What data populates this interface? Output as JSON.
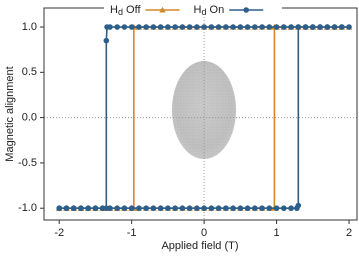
{
  "chart_data": {
    "type": "line",
    "xlabel": "Applied field (T)",
    "ylabel": "Magnetic alignment",
    "xlim": [
      -2.21,
      2.11
    ],
    "ylim": [
      -1.13,
      1.21
    ],
    "xticks": [
      -2,
      -1,
      0,
      1,
      2
    ],
    "yticks": [
      {
        "value": -1,
        "label": "-1.0"
      },
      {
        "value": -0.5,
        "label": "-0.5"
      },
      {
        "value": 0,
        "label": "0.0"
      },
      {
        "value": 0.5,
        "label": "0.5"
      },
      {
        "value": 1,
        "label": "1.0"
      }
    ],
    "zero_lines": true,
    "legend": "top",
    "series": [
      {
        "name": "Hd Off",
        "color": "#d4872b",
        "marker": "triangle",
        "x": [
          -2.0,
          -1.9,
          -1.8,
          -1.7,
          -1.6,
          -1.5,
          -1.4,
          -1.3,
          -1.2,
          -1.1,
          -1.0,
          -0.9,
          -0.8,
          -0.7,
          -0.6,
          -0.5,
          -0.4,
          -0.3,
          -0.2,
          -0.1,
          0.0,
          0.1,
          0.2,
          0.3,
          0.4,
          0.5,
          0.6,
          0.7,
          0.8,
          0.9,
          0.97,
          0.97,
          1.0,
          1.1,
          1.2,
          1.3,
          1.4,
          1.5,
          1.6,
          1.7,
          1.8,
          1.9,
          2.0,
          1.9,
          1.8,
          1.7,
          1.6,
          1.5,
          1.4,
          1.3,
          1.2,
          1.1,
          1.0,
          0.9,
          0.8,
          0.7,
          0.6,
          0.5,
          0.4,
          0.3,
          0.2,
          0.1,
          0.0,
          -0.1,
          -0.2,
          -0.3,
          -0.4,
          -0.5,
          -0.6,
          -0.7,
          -0.8,
          -0.9,
          -0.97,
          -0.97,
          -1.0,
          -1.1,
          -1.2,
          -1.3,
          -1.4,
          -1.5,
          -1.6,
          -1.7,
          -1.8,
          -1.9,
          -2.0
        ],
        "values": [
          -1,
          -1,
          -1,
          -1,
          -1,
          -1,
          -1,
          -1,
          -1,
          -1,
          -1,
          -1,
          -1,
          -1,
          -1,
          -1,
          -1,
          -1,
          -1,
          -1,
          -1,
          -1,
          -1,
          -1,
          -1,
          -1,
          -1,
          -1,
          -1,
          -1,
          -1,
          1,
          1,
          1,
          1,
          1,
          1,
          1,
          1,
          1,
          1,
          1,
          1,
          1,
          1,
          1,
          1,
          1,
          1,
          1,
          1,
          1,
          1,
          1,
          1,
          1,
          1,
          1,
          1,
          1,
          1,
          1,
          1,
          1,
          1,
          1,
          1,
          1,
          1,
          1,
          1,
          1,
          1,
          -1,
          -1,
          -1,
          -1,
          -1,
          -1,
          -1,
          -1,
          -1,
          -1,
          -1,
          -1
        ]
      },
      {
        "name": "Hd On",
        "color": "#2e5f8a",
        "marker": "circle",
        "x": [
          -2.0,
          -1.9,
          -1.8,
          -1.7,
          -1.6,
          -1.5,
          -1.4,
          -1.3,
          -1.2,
          -1.1,
          -1.0,
          -0.9,
          -0.8,
          -0.7,
          -0.6,
          -0.5,
          -0.4,
          -0.3,
          -0.2,
          -0.1,
          0.0,
          0.1,
          0.2,
          0.3,
          0.4,
          0.5,
          0.6,
          0.7,
          0.8,
          0.9,
          1.0,
          1.1,
          1.2,
          1.28,
          1.3,
          1.3,
          1.4,
          1.5,
          1.6,
          1.7,
          1.8,
          1.9,
          2.0,
          1.9,
          1.8,
          1.7,
          1.6,
          1.5,
          1.4,
          1.3,
          1.2,
          1.1,
          1.0,
          0.9,
          0.8,
          0.7,
          0.6,
          0.5,
          0.4,
          0.3,
          0.2,
          0.1,
          0.0,
          -0.1,
          -0.2,
          -0.3,
          -0.4,
          -0.5,
          -0.6,
          -0.7,
          -0.8,
          -0.9,
          -1.0,
          -1.1,
          -1.2,
          -1.3,
          -1.34,
          -1.35,
          -1.35,
          -1.4,
          -1.5,
          -1.6,
          -1.7,
          -1.8,
          -1.9,
          -2.0
        ],
        "values": [
          -1,
          -1,
          -1,
          -1,
          -1,
          -1,
          -1,
          -1,
          -1,
          -1,
          -1,
          -1,
          -1,
          -1,
          -1,
          -1,
          -1,
          -1,
          -1,
          -1,
          -1,
          -1,
          -1,
          -1,
          -1,
          -1,
          -1,
          -1,
          -1,
          -1,
          -1,
          -1,
          -1,
          -1,
          -0.97,
          1,
          1,
          1,
          1,
          1,
          1,
          1,
          1,
          1,
          1,
          1,
          1,
          1,
          1,
          1,
          1,
          1,
          1,
          1,
          1,
          1,
          1,
          1,
          1,
          1,
          1,
          1,
          1,
          1,
          1,
          1,
          1,
          1,
          1,
          1,
          1,
          1,
          1,
          1,
          1,
          1,
          1,
          0.85,
          -1,
          -1,
          -1,
          -1,
          -1,
          -1,
          -1,
          -1
        ]
      }
    ]
  }
}
